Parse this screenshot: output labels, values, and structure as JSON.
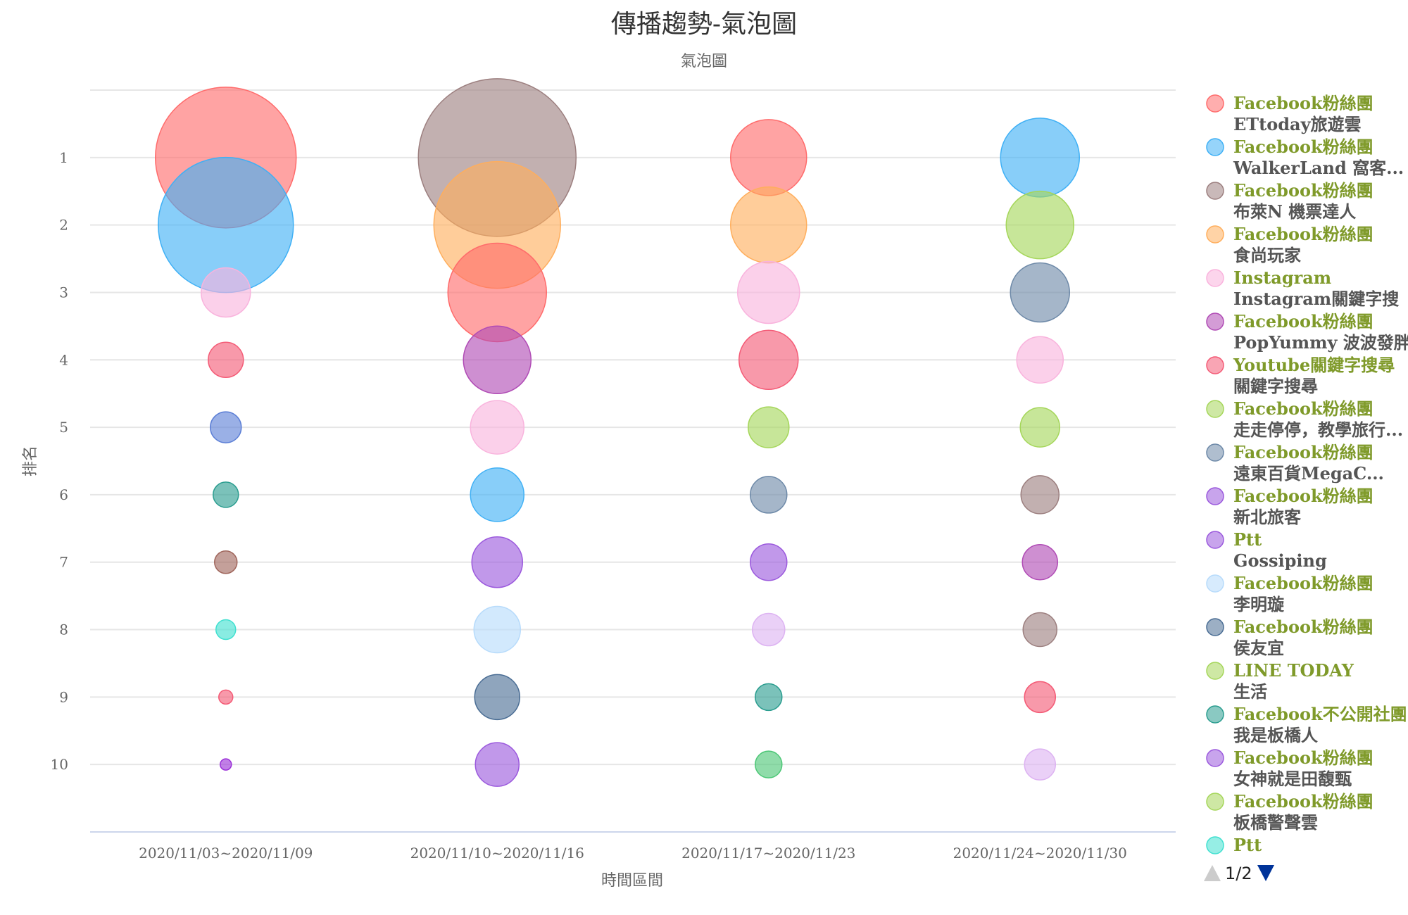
{
  "chart_data": {
    "type": "bubble",
    "title": "傳播趨勢-氣泡圖",
    "subtitle": "氣泡圖",
    "xlabel": "時間區間",
    "ylabel": "排名",
    "categories": [
      "2020/11/03~2020/11/09",
      "2020/11/10~2020/11/16",
      "2020/11/17~2020/11/23",
      "2020/11/24~2020/11/30"
    ],
    "y_ticks": [
      "1",
      "2",
      "3",
      "4",
      "5",
      "6",
      "7",
      "8",
      "9",
      "10"
    ],
    "ylim": [
      0,
      11
    ],
    "grid": true,
    "legend_position": "right",
    "points": [
      {
        "x": 0,
        "rank": 1,
        "size": 100,
        "color": "#ff6b6b"
      },
      {
        "x": 0,
        "rank": 2,
        "size": 96,
        "color": "#3fb0f5"
      },
      {
        "x": 0,
        "rank": 3,
        "size": 35,
        "color": "#f9b3dd"
      },
      {
        "x": 0,
        "rank": 4,
        "size": 25,
        "color": "#f45b76"
      },
      {
        "x": 0,
        "rank": 5,
        "size": 22,
        "color": "#5c7fd6"
      },
      {
        "x": 0,
        "rank": 6,
        "size": 18,
        "color": "#2a9d8f"
      },
      {
        "x": 0,
        "rank": 7,
        "size": 16,
        "color": "#a0665c"
      },
      {
        "x": 0,
        "rank": 8,
        "size": 14,
        "color": "#40e0d0"
      },
      {
        "x": 0,
        "rank": 9,
        "size": 10,
        "color": "#f45b76"
      },
      {
        "x": 0,
        "rank": 10,
        "size": 8,
        "color": "#9b30d8"
      },
      {
        "x": 1,
        "rank": 1,
        "size": 112,
        "color": "#9c7f7f"
      },
      {
        "x": 1,
        "rank": 2,
        "size": 90,
        "color": "#ffae5c"
      },
      {
        "x": 1,
        "rank": 3,
        "size": 70,
        "color": "#ff6b6b"
      },
      {
        "x": 1,
        "rank": 4,
        "size": 48,
        "color": "#b04bb5"
      },
      {
        "x": 1,
        "rank": 5,
        "size": 38,
        "color": "#f9b3dd"
      },
      {
        "x": 1,
        "rank": 6,
        "size": 38,
        "color": "#3fb0f5"
      },
      {
        "x": 1,
        "rank": 7,
        "size": 36,
        "color": "#9b59dd"
      },
      {
        "x": 1,
        "rank": 8,
        "size": 33,
        "color": "#b7dbfb"
      },
      {
        "x": 1,
        "rank": 9,
        "size": 32,
        "color": "#4a6d94"
      },
      {
        "x": 1,
        "rank": 10,
        "size": 31,
        "color": "#9b59dd"
      },
      {
        "x": 2,
        "rank": 1,
        "size": 54,
        "color": "#ff6b6b"
      },
      {
        "x": 2,
        "rank": 2,
        "size": 54,
        "color": "#ffae5c"
      },
      {
        "x": 2,
        "rank": 3,
        "size": 44,
        "color": "#f9b3dd"
      },
      {
        "x": 2,
        "rank": 4,
        "size": 42,
        "color": "#f45b76"
      },
      {
        "x": 2,
        "rank": 5,
        "size": 29,
        "color": "#a5d65a"
      },
      {
        "x": 2,
        "rank": 6,
        "size": 26,
        "color": "#6d89a8"
      },
      {
        "x": 2,
        "rank": 7,
        "size": 26,
        "color": "#9b59dd"
      },
      {
        "x": 2,
        "rank": 8,
        "size": 23,
        "color": "#ddb3f2"
      },
      {
        "x": 2,
        "rank": 9,
        "size": 19,
        "color": "#2a9d8f"
      },
      {
        "x": 2,
        "rank": 10,
        "size": 19,
        "color": "#4cc776"
      },
      {
        "x": 3,
        "rank": 1,
        "size": 56,
        "color": "#3fb0f5"
      },
      {
        "x": 3,
        "rank": 2,
        "size": 48,
        "color": "#a5d65a"
      },
      {
        "x": 3,
        "rank": 3,
        "size": 42,
        "color": "#6d89a8"
      },
      {
        "x": 3,
        "rank": 4,
        "size": 33,
        "color": "#f9b3dd"
      },
      {
        "x": 3,
        "rank": 5,
        "size": 28,
        "color": "#a5d65a"
      },
      {
        "x": 3,
        "rank": 6,
        "size": 27,
        "color": "#9c7f7f"
      },
      {
        "x": 3,
        "rank": 7,
        "size": 25,
        "color": "#b04bb5"
      },
      {
        "x": 3,
        "rank": 8,
        "size": 24,
        "color": "#9c7f7f"
      },
      {
        "x": 3,
        "rank": 9,
        "size": 22,
        "color": "#f45b76"
      },
      {
        "x": 3,
        "rank": 10,
        "size": 22,
        "color": "#ddb3f2"
      }
    ],
    "legend": [
      {
        "source": "Facebook粉絲團",
        "name": "ETtoday旅遊雲",
        "color": "#ff6b6b"
      },
      {
        "source": "Facebook粉絲團",
        "name": "WalkerLand 窩客...",
        "color": "#3fb0f5"
      },
      {
        "source": "Facebook粉絲團",
        "name": "布萊N 機票達人",
        "color": "#9c7f7f"
      },
      {
        "source": "Facebook粉絲團",
        "name": "食尚玩家",
        "color": "#ffae5c"
      },
      {
        "source": "Instagram",
        "name": "Instagram關鍵字搜",
        "color": "#f9b3dd"
      },
      {
        "source": "Facebook粉絲團",
        "name": "PopYummy 波波發胖",
        "color": "#b04bb5"
      },
      {
        "source": "Youtube關鍵字搜尋",
        "name": "關鍵字搜尋",
        "color": "#f45b76"
      },
      {
        "source": "Facebook粉絲團",
        "name": "走走停停，教學旅行...",
        "color": "#a5d65a"
      },
      {
        "source": "Facebook粉絲團",
        "name": "遠東百貨MegaC...",
        "color": "#6d89a8"
      },
      {
        "source": "Facebook粉絲團",
        "name": "新北旅客",
        "color": "#9b59dd"
      },
      {
        "source": "Ptt",
        "name": "Gossiping",
        "color": "#9b59dd"
      },
      {
        "source": "Facebook粉絲團",
        "name": "李明璇",
        "color": "#b7dbfb"
      },
      {
        "source": "Facebook粉絲團",
        "name": "侯友宜",
        "color": "#4a6d94"
      },
      {
        "source": "LINE TODAY",
        "name": "生活",
        "color": "#a5d65a"
      },
      {
        "source": "Facebook不公開社團",
        "name": "我是板橋人",
        "color": "#2a9d8f"
      },
      {
        "source": "Facebook粉絲團",
        "name": "女神就是田馥甄",
        "color": "#9b59dd"
      },
      {
        "source": "Facebook粉絲團",
        "name": "板橋警聲雲",
        "color": "#a5d65a"
      },
      {
        "source": "Ptt",
        "name": "",
        "color": "#40e0d0"
      }
    ],
    "pager": "1/2"
  }
}
